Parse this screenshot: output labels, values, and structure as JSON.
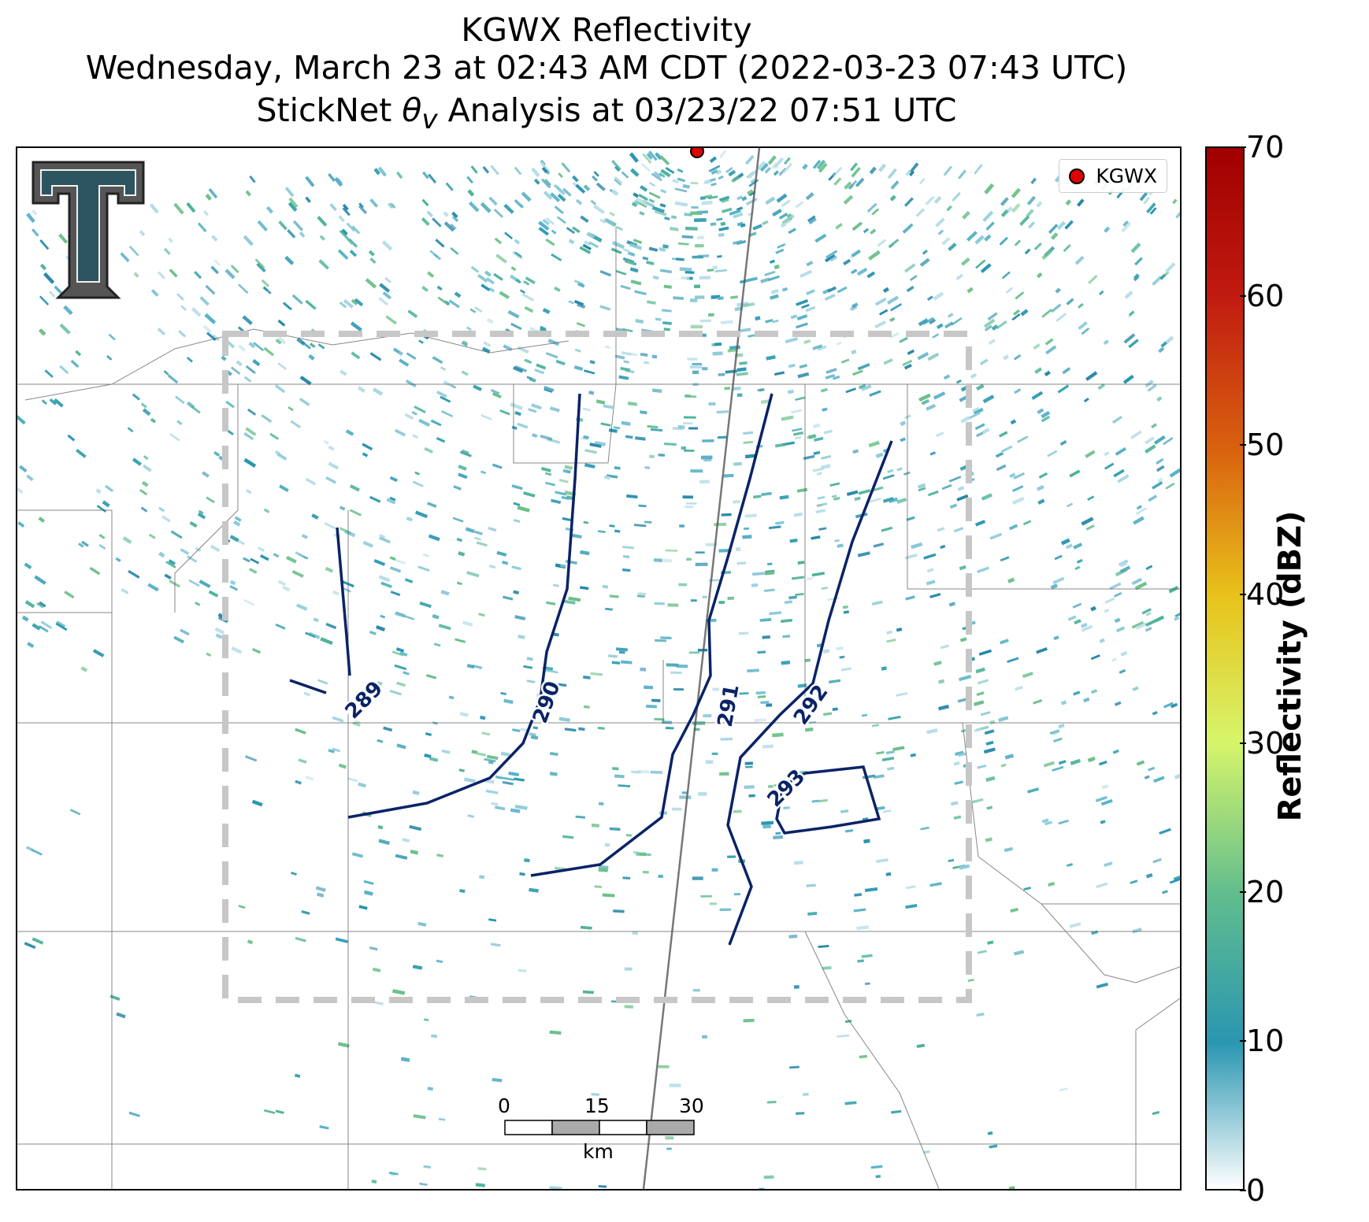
{
  "title": {
    "line1": "KGWX Reflectivity",
    "line2": "Wednesday, March 23 at 02:43 AM CDT (2022-03-23 07:43 UTC)",
    "line3_prefix": "StickNet ",
    "line3_theta": "θ",
    "line3_sub": "v",
    "line3_suffix": " Analysis at 03/23/22 07:51 UTC"
  },
  "legend": {
    "label": "KGWX",
    "marker_color": "#e00000"
  },
  "colorbar": {
    "label": "Reflectivity (dBZ)",
    "ticks": [
      "70",
      "60",
      "50",
      "40",
      "30",
      "20",
      "10",
      "0"
    ],
    "colors": [
      "#ffffff",
      "#2a96b1",
      "#5fbc8f",
      "#d7f56a",
      "#e8c21a",
      "#d9620f",
      "#c01a10",
      "#a00000"
    ]
  },
  "contours": {
    "color": "#0a2366",
    "labels": [
      "289",
      "290",
      "291",
      "292",
      "293"
    ]
  },
  "scalebar": {
    "ticks": [
      "0",
      "15",
      "30"
    ],
    "unit": "km"
  },
  "logo": {
    "name": "Texas Tech double-T logo"
  },
  "radar_site": {
    "name": "KGWX"
  }
}
